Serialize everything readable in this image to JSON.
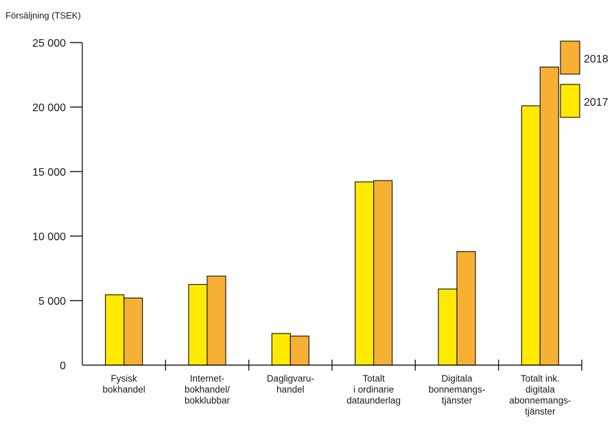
{
  "chart_data": {
    "type": "bar",
    "ylabel": "Försäljning (TSEK)",
    "ylim": [
      0,
      25000
    ],
    "yticks": [
      0,
      5000,
      10000,
      15000,
      20000,
      25000
    ],
    "ytick_labels": [
      "0",
      "5 000",
      "10 000",
      "15 000",
      "20 000",
      "25 000"
    ],
    "categories": [
      [
        "Fysisk",
        "bokhandel"
      ],
      [
        "Internet-",
        "bokhandel/",
        "bokklubbar"
      ],
      [
        "Dagligvaru-",
        "handel"
      ],
      [
        "Totalt",
        "i ordinarie",
        "dataunderlag"
      ],
      [
        "Digitala",
        "bonnemangs-",
        "tjänster"
      ],
      [
        "Totalt ink.",
        "digitala",
        "abonnemangs-",
        "tjänster"
      ]
    ],
    "series": [
      {
        "name": "2017",
        "color": "#ffea00",
        "values": [
          5450,
          6250,
          2450,
          14200,
          5900,
          20100
        ]
      },
      {
        "name": "2018",
        "color": "#f7b034",
        "values": [
          5200,
          6900,
          2250,
          14300,
          8800,
          23100
        ]
      }
    ],
    "legend": {
      "placement": "top-right",
      "items": [
        {
          "label": "2018",
          "color": "#f7b034"
        },
        {
          "label": "2017",
          "color": "#ffea00"
        }
      ]
    },
    "grid": false
  }
}
